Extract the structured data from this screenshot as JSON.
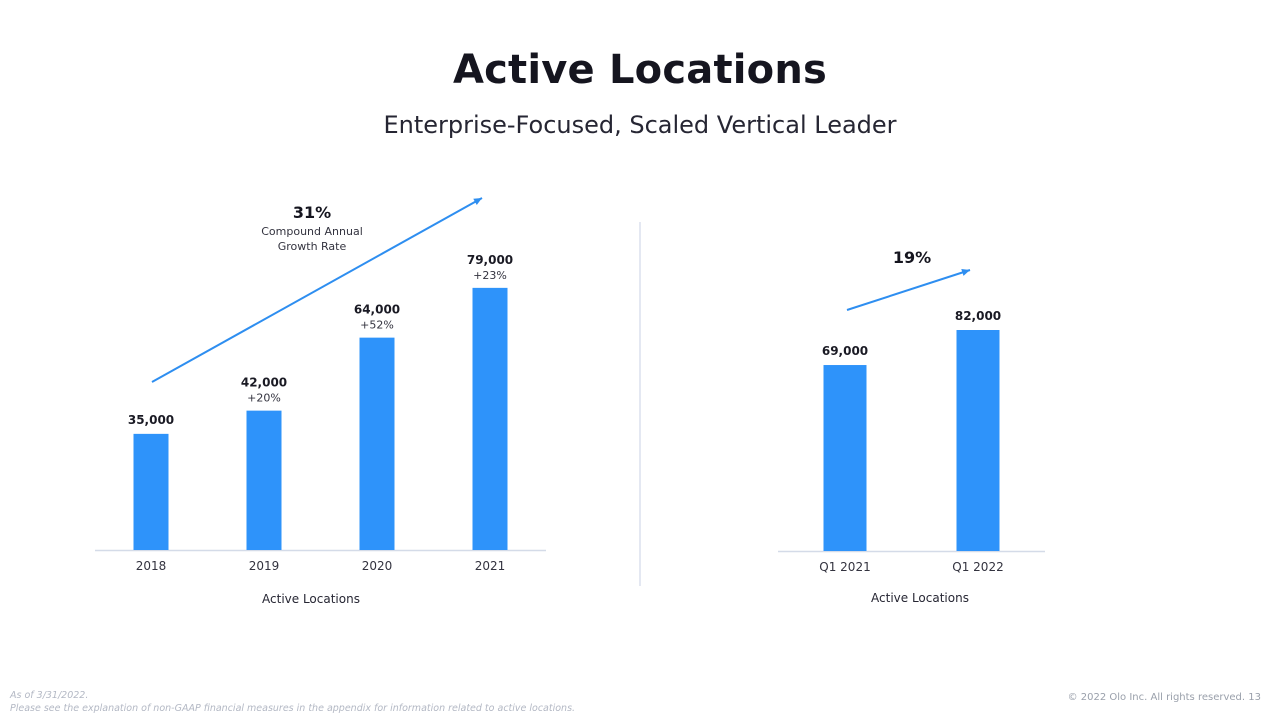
{
  "slide": {
    "title": "Active Locations",
    "subtitle": "Enterprise-Focused, Scaled Vertical Leader",
    "footnote_line1": "As of 3/31/2022.",
    "footnote_line2": "Please see the explanation of non-GAAP financial measures in the appendix for information related to active locations.",
    "copyright": "© 2022 Olo Inc. All rights reserved.",
    "page_number": "13"
  },
  "colors": {
    "bar": "#2e93fa",
    "arrow": "#2e8ef0",
    "axis": "#d4dbe8"
  },
  "chart_data": [
    {
      "type": "bar",
      "categories": [
        "2018",
        "2019",
        "2020",
        "2021"
      ],
      "values": [
        35000,
        42000,
        64000,
        79000
      ],
      "value_labels": [
        "35,000",
        "42,000",
        "64,000",
        "79,000"
      ],
      "growth_labels": [
        "",
        "+20%",
        "+52%",
        "+23%"
      ],
      "xlabel": "Active Locations",
      "ylim": [
        0,
        110000
      ],
      "annotation": {
        "value": "31%",
        "caption_line1": "Compound Annual",
        "caption_line2": "Growth Rate",
        "trend_arrow": true
      },
      "grid": false
    },
    {
      "type": "bar",
      "categories": [
        "Q1 2021",
        "Q1 2022"
      ],
      "values": [
        69000,
        82000
      ],
      "value_labels": [
        "69,000",
        "82,000"
      ],
      "xlabel": "Active Locations",
      "ylim": [
        0,
        82000
      ],
      "annotation": {
        "value": "19%",
        "trend_arrow": true
      },
      "grid": false
    }
  ]
}
